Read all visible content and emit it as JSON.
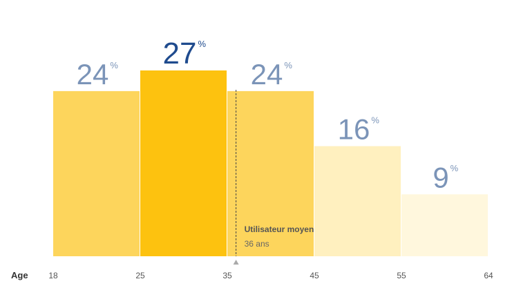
{
  "chart_data": {
    "type": "histogram",
    "bins": [
      18,
      25,
      35,
      45,
      55,
      64
    ],
    "values": [
      24,
      27,
      24,
      16,
      9
    ],
    "unit": "%",
    "colors": [
      "#fdd55c",
      "#fdc20f",
      "#fdd55c",
      "#fff0bf",
      "#fff7dd"
    ],
    "label_colors": [
      "#7b94b8",
      "#1f4b8e",
      "#7b94b8",
      "#7b94b8",
      "#7b94b8"
    ],
    "xlabel": "Age",
    "ylim": [
      0,
      27
    ],
    "annotation": {
      "title": "Utilisateur moyen",
      "label": "36 ans",
      "value": 36
    }
  }
}
